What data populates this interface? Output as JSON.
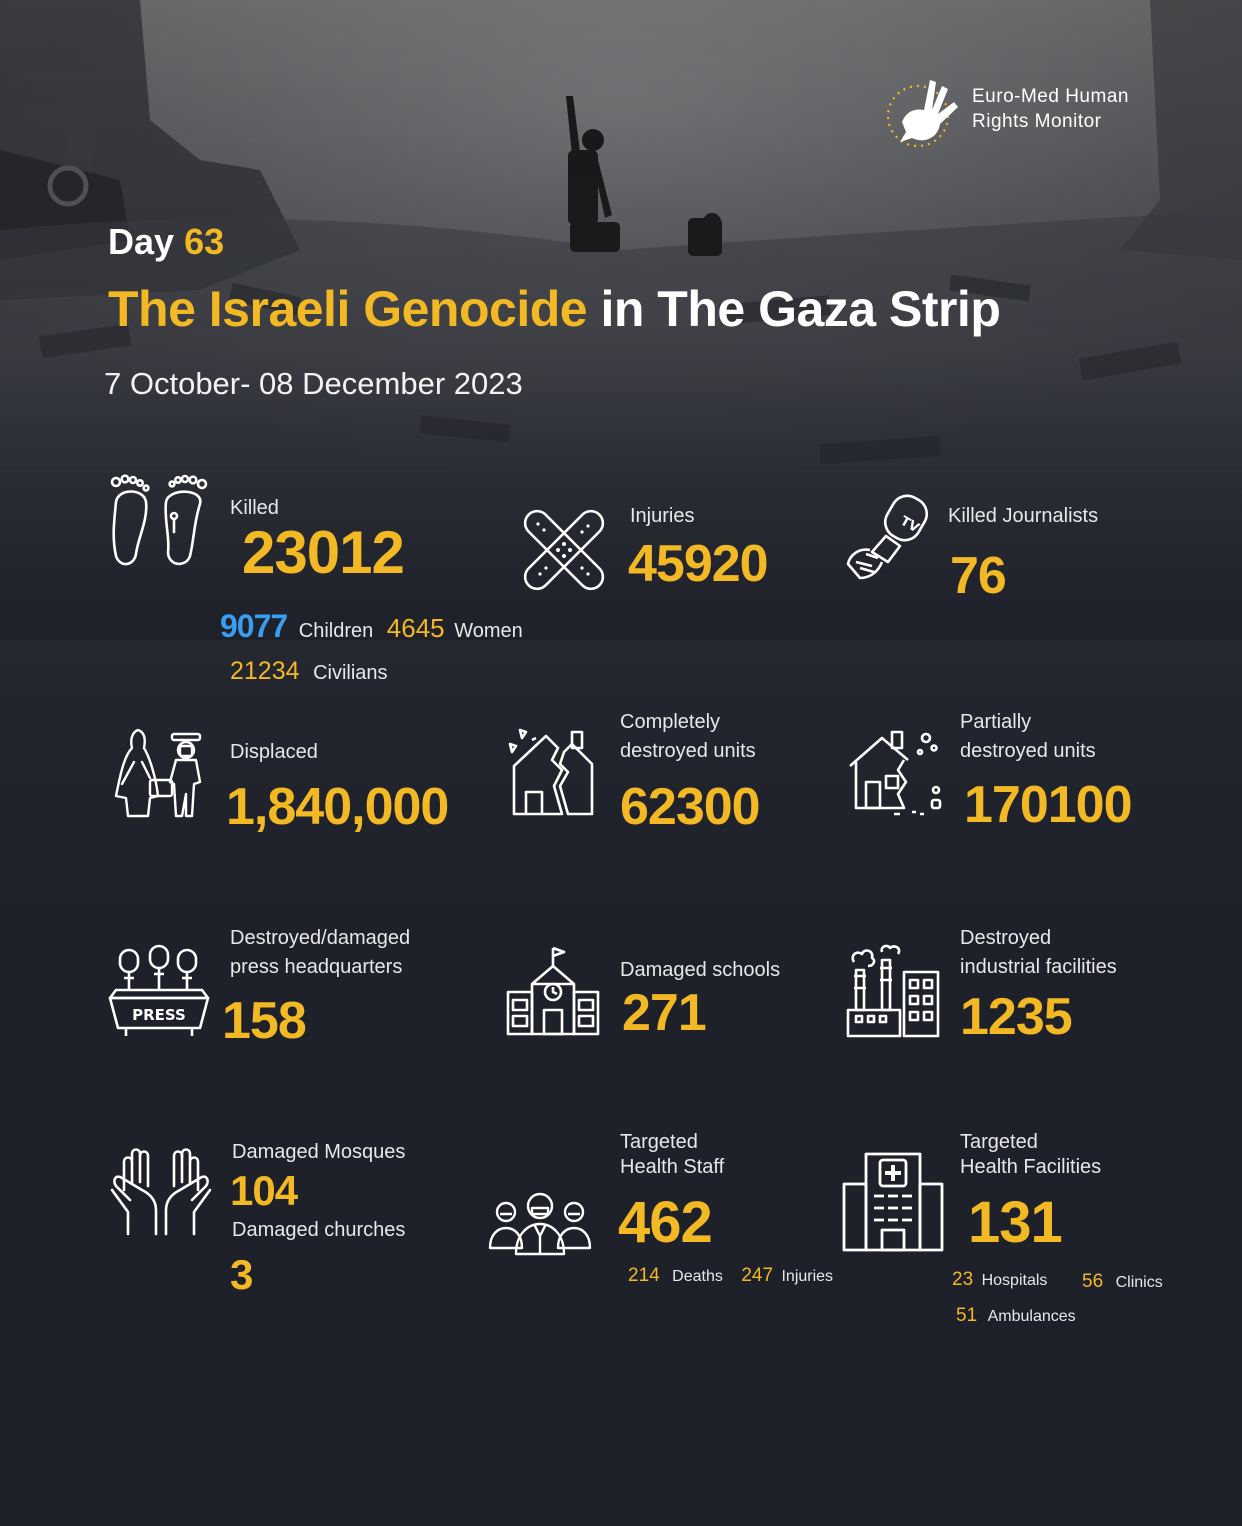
{
  "brand": {
    "line1": "Euro-Med Human",
    "line2": "Rights Monitor"
  },
  "header": {
    "day_label": "Day",
    "day_number": "63",
    "title_highlight": "The Israeli Genocide",
    "title_rest": "in The Gaza Strip",
    "date_range": "7 October- 08 December 2023"
  },
  "stats": {
    "killed": {
      "label": "Killed",
      "value": "23012",
      "children_value": "9077",
      "children_label": "Children",
      "women_value": "4645",
      "women_label": "Women",
      "civilians_value": "21234",
      "civilians_label": "Civilians"
    },
    "injuries": {
      "label": "Injuries",
      "value": "45920"
    },
    "journalists": {
      "label": "Killed Journalists",
      "value": "76"
    },
    "displaced": {
      "label": "Displaced",
      "value": "1,840,000"
    },
    "complete_destroyed": {
      "label_1": "Completely",
      "label_2": "destroyed units",
      "value": "62300"
    },
    "partial_destroyed": {
      "label_1": "Partially",
      "label_2": "destroyed units",
      "value": "170100"
    },
    "press": {
      "label_1": "Destroyed/damaged",
      "label_2": "press headquarters",
      "value": "158",
      "icon_text": "PRESS"
    },
    "schools": {
      "label": "Damaged schools",
      "value": "271"
    },
    "industrial": {
      "label_1": "Destroyed",
      "label_2": "industrial facilities",
      "value": "1235"
    },
    "mosques": {
      "label": "Damaged Mosques",
      "value": "104"
    },
    "churches": {
      "label": "Damaged churches",
      "value": "3"
    },
    "health_staff": {
      "label_1": "Targeted",
      "label_2": "Health Staff",
      "value": "462",
      "deaths_value": "214",
      "deaths_label": "Deaths",
      "injuries_value": "247",
      "injuries_label": "Injuries"
    },
    "health_facilities": {
      "label_1": "Targeted",
      "label_2": "Health Facilities",
      "value": "131",
      "hospitals_value": "23",
      "hospitals_label": "Hospitals",
      "clinics_value": "56",
      "clinics_label": "Clinics",
      "ambulances_value": "51",
      "ambulances_label": "Ambulances"
    }
  },
  "colors": {
    "accent": "#f2b924",
    "blue": "#3a9ef0",
    "background": "#1e2029"
  },
  "icons": [
    "hand-dove-logo-icon",
    "footprints-icon",
    "bandage-icon",
    "tv-microphone-icon",
    "refugees-icon",
    "destroyed-house-icon",
    "damaged-house-icon",
    "press-microphones-icon",
    "school-icon",
    "factory-icon",
    "praying-hands-icon",
    "medical-staff-icon",
    "hospital-icon"
  ]
}
